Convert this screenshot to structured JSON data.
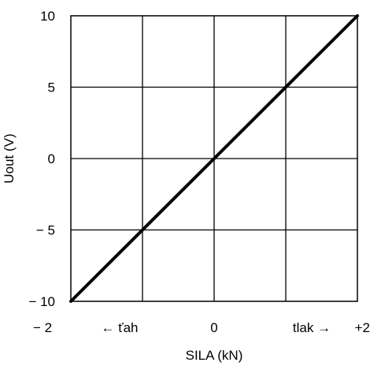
{
  "chart_data": {
    "type": "line",
    "title": "",
    "xlabel": "SILA (kN)",
    "ylabel": "Uout (V)",
    "xlim": [
      -2,
      2
    ],
    "ylim": [
      -10,
      10
    ],
    "grid": true,
    "x_ticks": [
      {
        "value": -2,
        "label": "− 2"
      },
      {
        "value": 0,
        "label": "0"
      },
      {
        "value": 2,
        "label": "+2"
      }
    ],
    "y_ticks": [
      {
        "value": 10,
        "label": "10"
      },
      {
        "value": 5,
        "label": "5"
      },
      {
        "value": 0,
        "label": "0"
      },
      {
        "value": -5,
        "label": "− 5"
      },
      {
        "value": -10,
        "label": "− 10"
      }
    ],
    "annotations": {
      "left": "← ťah",
      "right": "tlak →"
    },
    "series": [
      {
        "x": [
          -2,
          2
        ],
        "y": [
          -10,
          10
        ],
        "color": "#000000"
      }
    ]
  }
}
